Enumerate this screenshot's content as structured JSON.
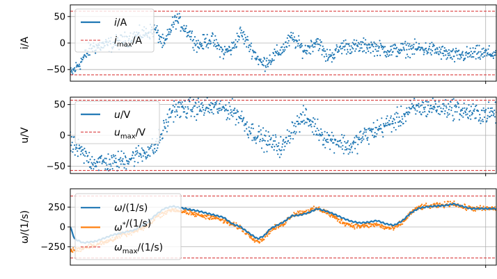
{
  "chart_data": [
    {
      "type": "scatter",
      "ylabel": "i/A",
      "ylim": [
        -72,
        72
      ],
      "xlim": [
        0,
        1
      ],
      "yticks": [
        -50,
        0,
        50
      ],
      "ytick_labels": [
        "−50",
        "0",
        "50"
      ],
      "vgrid_x": [
        0.975
      ],
      "limits": [
        60,
        -60
      ],
      "series": [
        {
          "name": "i/A",
          "color": "#1f77b4",
          "style": "dots",
          "noise": 12,
          "points": [
            [
              0,
              -60
            ],
            [
              0.02,
              -40
            ],
            [
              0.05,
              -8
            ],
            [
              0.1,
              -2
            ],
            [
              0.15,
              12
            ],
            [
              0.2,
              25
            ],
            [
              0.22,
              -5
            ],
            [
              0.24,
              35
            ],
            [
              0.25,
              45
            ],
            [
              0.28,
              18
            ],
            [
              0.3,
              -5
            ],
            [
              0.33,
              8
            ],
            [
              0.36,
              -18
            ],
            [
              0.38,
              -10
            ],
            [
              0.4,
              20
            ],
            [
              0.42,
              -5
            ],
            [
              0.45,
              -40
            ],
            [
              0.47,
              -30
            ],
            [
              0.5,
              -10
            ],
            [
              0.52,
              10
            ],
            [
              0.55,
              -15
            ],
            [
              0.58,
              5
            ],
            [
              0.6,
              -25
            ],
            [
              0.62,
              -20
            ],
            [
              0.64,
              -5
            ],
            [
              0.67,
              -8
            ],
            [
              0.7,
              -5
            ],
            [
              0.75,
              -15
            ],
            [
              0.8,
              -10
            ],
            [
              0.85,
              -12
            ],
            [
              0.9,
              -25
            ],
            [
              0.95,
              -20
            ],
            [
              1,
              -20
            ]
          ]
        }
      ],
      "legend": {
        "position": "top-left",
        "entries": [
          {
            "label": "i/A",
            "main": "i",
            "unit": "/A",
            "style": "line",
            "color": "#1f77b4"
          },
          {
            "label": "imax/A",
            "main": "i",
            "sub": "max",
            "unit": "/A",
            "style": "dashed",
            "color": "#d62728"
          }
        ]
      }
    },
    {
      "type": "scatter",
      "ylabel": "u/V",
      "ylim": [
        -62,
        62
      ],
      "xlim": [
        0,
        1
      ],
      "yticks": [
        -50,
        0,
        50
      ],
      "ytick_labels": [
        "−50",
        "0",
        "50"
      ],
      "vgrid_x": [
        0.975
      ],
      "limits": [
        57,
        -57
      ],
      "series": [
        {
          "name": "u/V",
          "color": "#1f77b4",
          "style": "dots",
          "noise": 14,
          "points": [
            [
              0,
              -15
            ],
            [
              0.02,
              -25
            ],
            [
              0.05,
              -42
            ],
            [
              0.1,
              -45
            ],
            [
              0.15,
              -35
            ],
            [
              0.18,
              -25
            ],
            [
              0.2,
              -20
            ],
            [
              0.22,
              10
            ],
            [
              0.24,
              42
            ],
            [
              0.3,
              44
            ],
            [
              0.35,
              45
            ],
            [
              0.38,
              40
            ],
            [
              0.4,
              30
            ],
            [
              0.42,
              10
            ],
            [
              0.45,
              -5
            ],
            [
              0.47,
              -12
            ],
            [
              0.5,
              -20
            ],
            [
              0.52,
              10
            ],
            [
              0.55,
              30
            ],
            [
              0.58,
              10
            ],
            [
              0.6,
              -5
            ],
            [
              0.63,
              -10
            ],
            [
              0.66,
              -20
            ],
            [
              0.68,
              -5
            ],
            [
              0.72,
              10
            ],
            [
              0.75,
              20
            ],
            [
              0.78,
              30
            ],
            [
              0.8,
              42
            ],
            [
              0.85,
              46
            ],
            [
              0.9,
              44
            ],
            [
              0.93,
              38
            ],
            [
              0.95,
              35
            ],
            [
              1,
              36
            ]
          ]
        }
      ],
      "legend": {
        "position": "top-left",
        "entries": [
          {
            "label": "u/V",
            "main": "u",
            "unit": "/V",
            "style": "line",
            "color": "#1f77b4"
          },
          {
            "label": "umax/V",
            "main": "u",
            "sub": "max",
            "unit": "/V",
            "style": "dashed",
            "color": "#d62728"
          }
        ]
      }
    },
    {
      "type": "line",
      "ylabel": "ω/(1/s)",
      "ylim": [
        -480,
        480
      ],
      "xlim": [
        0,
        1
      ],
      "yticks": [
        -250,
        0,
        250
      ],
      "ytick_labels": [
        "−250",
        "0",
        "250"
      ],
      "vgrid_x": [
        0.975
      ],
      "limits": [
        390,
        -390
      ],
      "series": [
        {
          "name": "ω*/(1/s)",
          "color": "#ff7f0e",
          "style": "dots",
          "noise": 28,
          "points": [
            [
              0,
              -300
            ],
            [
              0.02,
              -280
            ],
            [
              0.05,
              -230
            ],
            [
              0.08,
              -200
            ],
            [
              0.1,
              -150
            ],
            [
              0.12,
              -100
            ],
            [
              0.15,
              -60
            ],
            [
              0.18,
              10
            ],
            [
              0.2,
              120
            ],
            [
              0.22,
              180
            ],
            [
              0.24,
              220
            ],
            [
              0.26,
              200
            ],
            [
              0.3,
              150
            ],
            [
              0.33,
              130
            ],
            [
              0.35,
              100
            ],
            [
              0.38,
              30
            ],
            [
              0.4,
              -10
            ],
            [
              0.42,
              -100
            ],
            [
              0.44,
              -180
            ],
            [
              0.45,
              -160
            ],
            [
              0.47,
              -40
            ],
            [
              0.5,
              40
            ],
            [
              0.52,
              150
            ],
            [
              0.54,
              180
            ],
            [
              0.56,
              200
            ],
            [
              0.58,
              230
            ],
            [
              0.6,
              190
            ],
            [
              0.62,
              120
            ],
            [
              0.64,
              60
            ],
            [
              0.66,
              20
            ],
            [
              0.68,
              10
            ],
            [
              0.7,
              20
            ],
            [
              0.72,
              30
            ],
            [
              0.74,
              -10
            ],
            [
              0.76,
              -20
            ],
            [
              0.78,
              60
            ],
            [
              0.8,
              180
            ],
            [
              0.82,
              250
            ],
            [
              0.85,
              260
            ],
            [
              0.88,
              280
            ],
            [
              0.9,
              300
            ],
            [
              0.92,
              250
            ],
            [
              0.95,
              230
            ],
            [
              1,
              230
            ]
          ]
        },
        {
          "name": "ω/(1/s)",
          "color": "#1f77b4",
          "style": "line",
          "points": [
            [
              0,
              0
            ],
            [
              0.01,
              -150
            ],
            [
              0.03,
              -200
            ],
            [
              0.06,
              -180
            ],
            [
              0.1,
              -100
            ],
            [
              0.15,
              -40
            ],
            [
              0.18,
              50
            ],
            [
              0.2,
              150
            ],
            [
              0.22,
              230
            ],
            [
              0.24,
              260
            ],
            [
              0.26,
              240
            ],
            [
              0.3,
              200
            ],
            [
              0.33,
              160
            ],
            [
              0.36,
              120
            ],
            [
              0.38,
              40
            ],
            [
              0.4,
              0
            ],
            [
              0.42,
              -80
            ],
            [
              0.44,
              -150
            ],
            [
              0.455,
              -110
            ],
            [
              0.47,
              -20
            ],
            [
              0.5,
              60
            ],
            [
              0.52,
              140
            ],
            [
              0.54,
              150
            ],
            [
              0.56,
              180
            ],
            [
              0.58,
              230
            ],
            [
              0.6,
              200
            ],
            [
              0.62,
              160
            ],
            [
              0.64,
              110
            ],
            [
              0.66,
              70
            ],
            [
              0.68,
              50
            ],
            [
              0.7,
              60
            ],
            [
              0.72,
              80
            ],
            [
              0.74,
              40
            ],
            [
              0.76,
              20
            ],
            [
              0.78,
              80
            ],
            [
              0.8,
              180
            ],
            [
              0.82,
              240
            ],
            [
              0.85,
              260
            ],
            [
              0.88,
              270
            ],
            [
              0.9,
              290
            ],
            [
              0.92,
              260
            ],
            [
              0.94,
              230
            ],
            [
              1,
              230
            ]
          ]
        }
      ],
      "legend": {
        "position": "top-left",
        "entries": [
          {
            "label": "ω/(1/s)",
            "main": "ω",
            "unit": "/(1/s)",
            "style": "line",
            "color": "#1f77b4"
          },
          {
            "label": "ω*/(1/s)",
            "main": "ω",
            "sup": "*",
            "unit": "/(1/s)",
            "style": "line",
            "color": "#ff7f0e"
          },
          {
            "label": "ωmax/(1/s)",
            "main": "ω",
            "sub": "max",
            "unit": "/(1/s)",
            "style": "dashed",
            "color": "#d62728"
          }
        ]
      }
    }
  ]
}
